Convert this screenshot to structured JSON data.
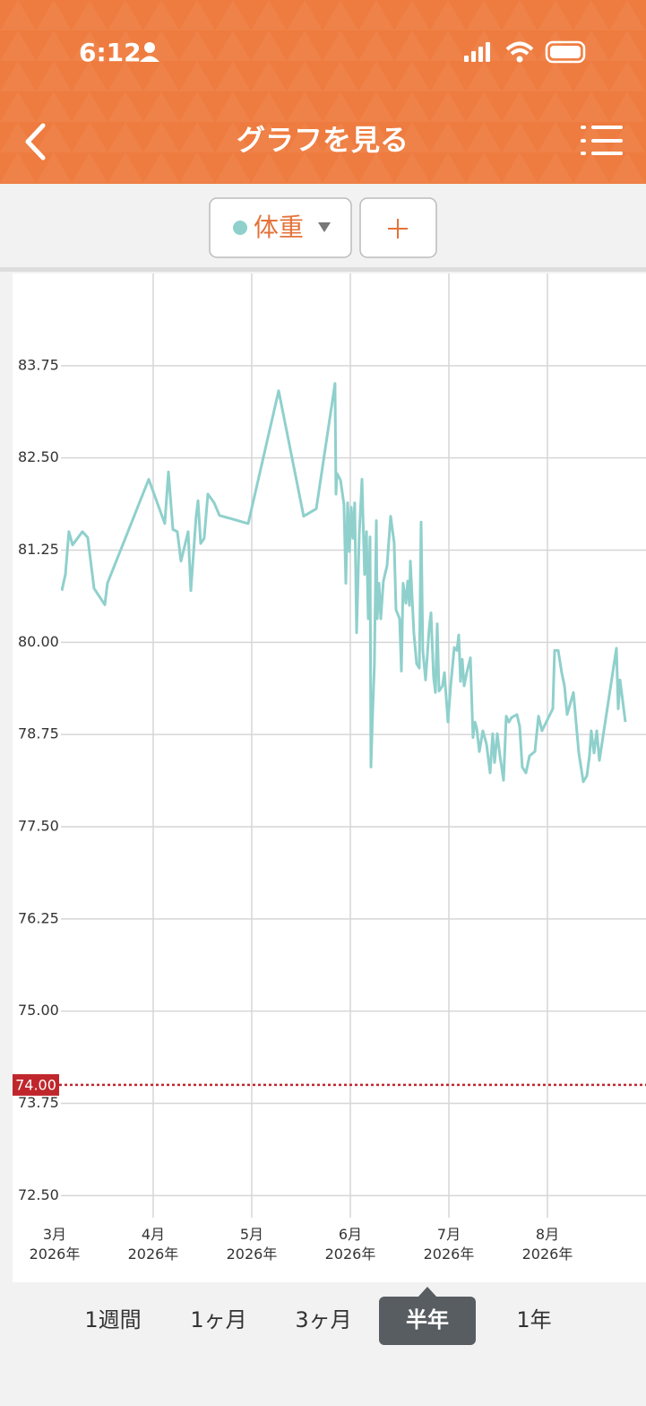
{
  "status_bar": {
    "time": "6:12"
  },
  "header": {
    "title": "グラフを見る"
  },
  "chart_data": {
    "type": "line",
    "x": [
      3.073,
      3.109,
      3.145,
      3.182,
      3.282,
      3.336,
      3.4,
      3.509,
      3.536,
      3.955,
      4.118,
      4.155,
      4.2,
      4.245,
      4.282,
      4.355,
      4.382,
      4.436,
      4.455,
      4.482,
      4.518,
      4.555,
      4.618,
      4.673,
      4.964,
      5.273,
      5.527,
      5.655,
      5.845,
      5.855,
      5.864,
      5.9,
      5.936,
      5.955,
      5.973,
      5.991,
      6.009,
      6.027,
      6.045,
      6.064,
      6.091,
      6.118,
      6.145,
      6.164,
      6.182,
      6.2,
      6.209,
      6.227,
      6.245,
      6.264,
      6.273,
      6.291,
      6.309,
      6.336,
      6.373,
      6.409,
      6.445,
      6.464,
      6.5,
      6.518,
      6.536,
      6.564,
      6.582,
      6.6,
      6.609,
      6.645,
      6.673,
      6.7,
      6.718,
      6.736,
      6.764,
      6.8,
      6.818,
      6.845,
      6.864,
      6.882,
      6.9,
      6.936,
      6.955,
      6.991,
      7.018,
      7.055,
      7.082,
      7.1,
      7.118,
      7.136,
      7.155,
      7.182,
      7.218,
      7.245,
      7.264,
      7.282,
      7.309,
      7.345,
      7.382,
      7.418,
      7.445,
      7.464,
      7.491,
      7.518,
      7.555,
      7.582,
      7.609,
      7.636,
      7.691,
      7.718,
      7.745,
      7.782,
      7.818,
      7.873,
      7.909,
      7.945,
      8.055,
      8.073,
      8.109,
      8.145,
      8.173,
      8.2,
      8.264,
      8.318,
      8.364,
      8.4,
      8.427,
      8.445,
      8.473,
      8.5,
      8.527,
      8.7,
      8.718,
      8.736,
      8.791
    ],
    "series": [
      {
        "name": "体重",
        "color": "#8fd0cc",
        "values": [
          80.7,
          80.92,
          81.5,
          81.32,
          81.5,
          81.42,
          80.73,
          80.51,
          80.8,
          82.21,
          81.61,
          82.31,
          81.53,
          81.5,
          81.1,
          81.5,
          80.7,
          81.71,
          81.92,
          81.34,
          81.41,
          82.01,
          81.89,
          81.72,
          81.61,
          83.41,
          81.71,
          81.81,
          83.51,
          82.01,
          82.29,
          82.2,
          81.87,
          80.8,
          81.89,
          81.23,
          81.83,
          81.41,
          81.89,
          80.13,
          81.47,
          82.21,
          80.92,
          81.5,
          80.32,
          81.43,
          78.31,
          79.08,
          79.71,
          81.65,
          80.32,
          80.8,
          80.32,
          80.83,
          81.04,
          81.71,
          81.35,
          80.44,
          80.32,
          79.61,
          80.8,
          80.53,
          80.83,
          80.5,
          81.1,
          80.13,
          79.71,
          79.65,
          81.63,
          79.89,
          79.49,
          80.19,
          80.4,
          79.53,
          79.32,
          80.25,
          79.34,
          79.41,
          79.59,
          78.92,
          79.41,
          79.93,
          79.89,
          80.1,
          79.47,
          79.77,
          79.41,
          79.59,
          79.79,
          78.71,
          78.92,
          78.84,
          78.52,
          78.8,
          78.62,
          78.23,
          78.76,
          78.37,
          78.76,
          78.46,
          78.13,
          79.0,
          78.92,
          78.98,
          79.02,
          78.86,
          78.31,
          78.23,
          78.46,
          78.52,
          79.0,
          78.8,
          79.1,
          79.89,
          79.89,
          79.59,
          79.41,
          79.02,
          79.32,
          78.5,
          78.11,
          78.19,
          78.47,
          78.8,
          78.5,
          78.8,
          78.4,
          79.92,
          79.1,
          79.49,
          78.92
        ]
      }
    ],
    "xlim": [
      3.064,
      9.0
    ],
    "ylim": [
      72.2,
      85.0
    ],
    "xticks": [
      {
        "value": 3,
        "label": "3月\n2026年"
      },
      {
        "value": 4,
        "label": "4月\n2026年"
      },
      {
        "value": 5,
        "label": "5月\n2026年"
      },
      {
        "value": 6,
        "label": "6月\n2026年"
      },
      {
        "value": 7,
        "label": "7月\n2026年"
      },
      {
        "value": 8,
        "label": "8月\n2026年"
      }
    ],
    "yticks": [
      {
        "value": 72.5,
        "label": "72.50"
      },
      73.75,
      {
        "value": 75,
        "label": "75.00"
      },
      76.25,
      {
        "value": 77.5,
        "label": "77.50"
      },
      78.75,
      {
        "value": 80,
        "label": "80.00"
      },
      81.25,
      {
        "value": 82.5,
        "label": "82.50"
      },
      83.75
    ],
    "goal": {
      "value": 74,
      "label": "74.00",
      "color": "#c0272d"
    },
    "grid": true
  },
  "period_tabs": {
    "options": [
      "1週間",
      "1ヶ月",
      "3ヶ月",
      "半年",
      "1年"
    ],
    "selected": 3
  }
}
